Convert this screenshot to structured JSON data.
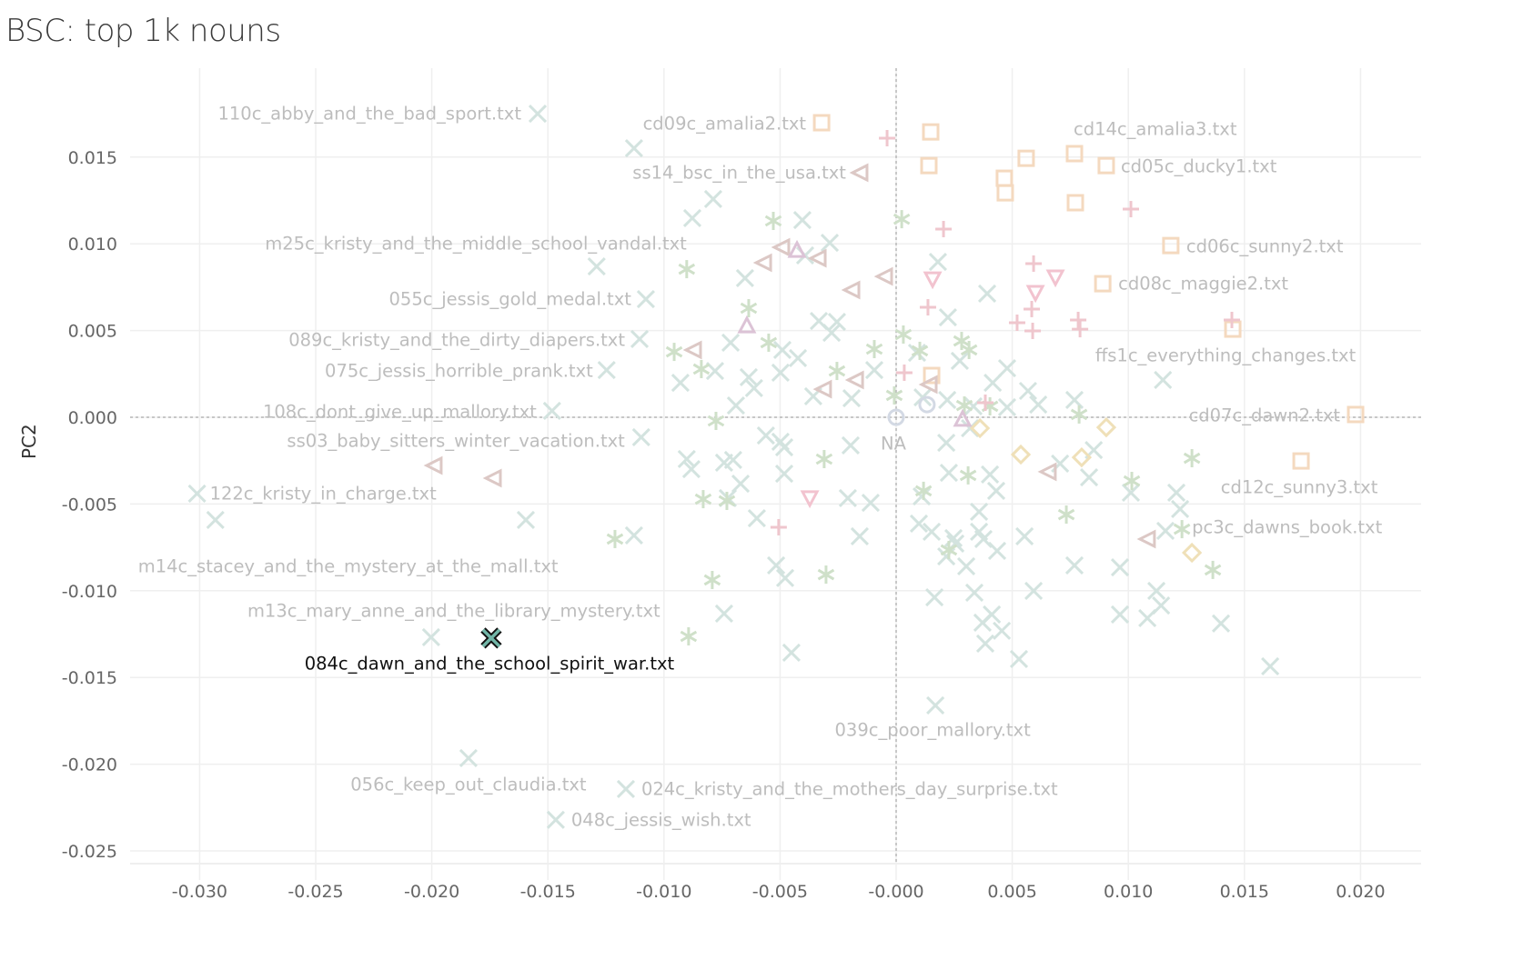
{
  "chart_data": {
    "type": "scatter",
    "title": "BSC: top 1k nouns",
    "xlabel": "",
    "ylabel": "PC2",
    "xlim": [
      -0.033,
      0.0225
    ],
    "ylim": [
      -0.0255,
      0.0195
    ],
    "x_ticks": [
      "-0.030",
      "-0.025",
      "-0.020",
      "-0.015",
      "-0.010",
      "-0.005",
      "-0.000",
      "0.005",
      "0.010",
      "0.015",
      "0.020"
    ],
    "x_tick_values": [
      -0.03,
      -0.025,
      -0.02,
      -0.015,
      -0.01,
      -0.005,
      0,
      0.005,
      0.01,
      0.015,
      0.02
    ],
    "y_ticks": [
      "0.015",
      "0.010",
      "0.005",
      "0.000",
      "-0.005",
      "-0.010",
      "-0.015",
      "-0.020",
      "-0.025"
    ],
    "y_tick_values": [
      0.015,
      0.01,
      0.005,
      0,
      -0.005,
      -0.01,
      -0.015,
      -0.02,
      -0.025
    ],
    "grid": true,
    "zero_lines": true,
    "legend": "none",
    "series": [
      {
        "shape": "x",
        "color": "#d3e3df",
        "points": [
          [
            -0.01129,
            0.01551
          ],
          [
            -0.00788,
            0.01258
          ],
          [
            -0.00878,
            0.01148
          ],
          [
            -0.00404,
            0.01137
          ],
          [
            -0.00286,
            0.01006
          ],
          [
            -0.00392,
            0.00933
          ],
          [
            -0.00651,
            0.00802
          ],
          [
            0.0018,
            0.00896
          ],
          [
            0.00392,
            0.00713
          ],
          [
            0.00223,
            0.00576
          ],
          [
            -0.00333,
            0.00555
          ],
          [
            -0.00255,
            0.0055
          ],
          [
            -0.00278,
            0.00487
          ],
          [
            -0.00713,
            0.0043
          ],
          [
            -0.0049,
            0.00388
          ],
          [
            -0.00423,
            0.00341
          ],
          [
            -0.00635,
            0.00231
          ],
          [
            -0.0078,
            0.00267
          ],
          [
            -0.00929,
            0.00199
          ],
          [
            -0.00612,
            0.00168
          ],
          [
            -0.00498,
            0.00257
          ],
          [
            -0.00357,
            0.00121
          ],
          [
            -0.00192,
            0.0011
          ],
          [
            -0.00094,
            0.00272
          ],
          [
            0.0009,
            0.00372
          ],
          [
            0.00274,
            0.00325
          ],
          [
            0.00416,
            0.00199
          ],
          [
            0.00478,
            0.00283
          ],
          [
            0.0022,
            0.001
          ],
          [
            0.00333,
            0.00063
          ],
          [
            0.00478,
            0.00058
          ],
          [
            0.00612,
            0.00073
          ],
          [
            0.00768,
            0.001
          ],
          [
            0.01149,
            0.00215
          ],
          [
            -0.0069,
            0.00068
          ],
          [
            0.00114,
            0.00115
          ],
          [
            -0.00561,
            -0.00105
          ],
          [
            -0.00498,
            -0.00141
          ],
          [
            -0.00482,
            -0.00173
          ],
          [
            -0.00196,
            -0.00162
          ],
          [
            -0.00482,
            -0.00325
          ],
          [
            -0.00902,
            -0.00241
          ],
          [
            -0.00882,
            -0.00299
          ],
          [
            -0.00741,
            -0.00262
          ],
          [
            -0.00702,
            -0.00246
          ],
          [
            -0.0067,
            -0.00383
          ],
          [
            -0.00725,
            -0.00466
          ],
          [
            -0.006,
            -0.00582
          ],
          [
            -0.01129,
            -0.00681
          ],
          [
            -0.01595,
            -0.00592
          ],
          [
            -0.00517,
            -0.00854
          ],
          [
            -0.00478,
            -0.00927
          ],
          [
            -0.00208,
            -0.00466
          ],
          [
            -0.0011,
            -0.00493
          ],
          [
            -0.00157,
            -0.00686
          ],
          [
            0.0011,
            -0.00456
          ],
          [
            0.00098,
            -0.00613
          ],
          [
            0.00153,
            -0.0066
          ],
          [
            0.00227,
            -0.0032
          ],
          [
            0.00318,
            -0.00063
          ],
          [
            0.00216,
            -0.00147
          ],
          [
            0.00247,
            -0.00697
          ],
          [
            0.00216,
            -0.00802
          ],
          [
            0.00302,
            -0.00859
          ],
          [
            0.00255,
            -0.00728
          ],
          [
            0.00404,
            -0.0033
          ],
          [
            0.00431,
            -0.00424
          ],
          [
            0.00357,
            -0.00545
          ],
          [
            0.00357,
            -0.0066
          ],
          [
            0.00376,
            -0.00702
          ],
          [
            0.00435,
            -0.0077
          ],
          [
            0.00553,
            -0.00686
          ],
          [
            0.00165,
            -0.01038
          ],
          [
            0.00337,
            -0.01011
          ],
          [
            0.00372,
            -0.01184
          ],
          [
            0.00412,
            -0.01137
          ],
          [
            0.00455,
            -0.01231
          ],
          [
            0.00384,
            -0.01305
          ],
          [
            0.00529,
            -0.01394
          ],
          [
            0.00592,
            -0.01001
          ],
          [
            0.00706,
            -0.00267
          ],
          [
            0.00831,
            -0.00346
          ],
          [
            0.00851,
            -0.00189
          ],
          [
            0.00768,
            -0.00854
          ],
          [
            0.00964,
            -0.00865
          ],
          [
            0.01011,
            -0.00435
          ],
          [
            0.00964,
            -0.01137
          ],
          [
            0.01082,
            -0.01158
          ],
          [
            0.01121,
            -0.01001
          ],
          [
            0.01141,
            -0.01085
          ],
          [
            0.01223,
            -0.00529
          ],
          [
            0.01207,
            -0.00435
          ],
          [
            0.0116,
            -0.00655
          ],
          [
            0.01399,
            -0.01189
          ],
          [
            0.01611,
            -0.01436
          ],
          [
            0.00568,
            0.00152
          ],
          [
            -0.00741,
            -0.01132
          ],
          [
            -0.00451,
            -0.01357
          ],
          [
            -0.02932,
            -0.00592
          ],
          [
            -0.02003,
            -0.01268
          ],
          [
            -0.01544,
            0.0175
          ],
          [
            -0.01078,
            0.00681
          ],
          [
            -0.01105,
            0.00451
          ],
          [
            -0.01247,
            0.00272
          ],
          [
            -0.01482,
            0.00037
          ],
          [
            -0.01098,
            -0.00115
          ],
          [
            -0.03011,
            -0.0044
          ],
          [
            -0.0129,
            0.0087
          ],
          [
            0.00169,
            -0.01661
          ],
          [
            -0.01842,
            -0.01965
          ],
          [
            -0.01164,
            -0.02143
          ],
          [
            -0.01466,
            -0.02321
          ]
        ]
      },
      {
        "shape": "asterisk",
        "color": "#cfe0c9",
        "points": [
          [
            -0.00529,
            0.01132
          ],
          [
            0.00024,
            0.01142
          ],
          [
            -0.00902,
            0.00854
          ],
          [
            -0.00635,
            0.00629
          ],
          [
            -0.00549,
            0.0043
          ],
          [
            0.00031,
            0.00477
          ],
          [
            -0.00094,
            0.00393
          ],
          [
            0.00102,
            0.00383
          ],
          [
            0.00282,
            0.0044
          ],
          [
            0.00314,
            0.00388
          ],
          [
            -0.00956,
            0.00377
          ],
          [
            -0.00839,
            0.00278
          ],
          [
            -0.00255,
            0.00267
          ],
          [
            -8e-05,
            0.00126
          ],
          [
            0.00294,
            0.00068
          ],
          [
            0.00788,
            0.00016
          ],
          [
            -0.00776,
            -0.00021
          ],
          [
            -0.0031,
            -0.00241
          ],
          [
            0.01274,
            -0.00236
          ],
          [
            0.01015,
            -0.00367
          ],
          [
            0.0031,
            -0.00335
          ],
          [
            0.00118,
            -0.00424
          ],
          [
            -0.00831,
            -0.00472
          ],
          [
            -0.00729,
            -0.00482
          ],
          [
            0.00733,
            -0.00561
          ],
          [
            -0.01211,
            -0.00702
          ],
          [
            0.00227,
            -0.00765
          ],
          [
            0.01231,
            -0.00645
          ],
          [
            0.01364,
            -0.0088
          ],
          [
            -0.00792,
            -0.00938
          ],
          [
            -0.00302,
            -0.00907
          ],
          [
            -0.00894,
            -0.01263
          ],
          [
            0.00404,
            0.00063
          ]
        ]
      },
      {
        "shape": "square",
        "color": "#f4d9bf",
        "points": [
          [
            -0.00321,
            0.01698
          ],
          [
            0.00149,
            0.01645
          ],
          [
            0.00141,
            0.01451
          ],
          [
            0.0056,
            0.01493
          ],
          [
            0.00466,
            0.01378
          ],
          [
            0.0047,
            0.01294
          ],
          [
            0.00768,
            0.0152
          ],
          [
            0.00905,
            0.01451
          ],
          [
            0.00772,
            0.01237
          ],
          [
            0.01183,
            0.0099
          ],
          [
            0.0089,
            0.0077
          ],
          [
            0.0145,
            0.00508
          ],
          [
            0.00153,
            0.00241
          ],
          [
            0.01979,
            0.00016
          ],
          [
            0.01744,
            -0.00252
          ]
        ]
      },
      {
        "shape": "plus",
        "color": "#efc6cd",
        "points": [
          [
            -0.00039,
            0.01609
          ],
          [
            0.00204,
            0.01085
          ],
          [
            0.01011,
            0.012
          ],
          [
            0.00592,
            0.00886
          ],
          [
            0.00137,
            0.00634
          ],
          [
            0.00584,
            0.00624
          ],
          [
            0.00521,
            0.00545
          ],
          [
            0.00588,
            0.00498
          ],
          [
            0.00784,
            0.00561
          ],
          [
            0.00792,
            0.00508
          ],
          [
            0.01446,
            0.00561
          ],
          [
            0.00035,
            0.00257
          ],
          [
            0.00384,
            0.00084
          ],
          [
            -0.00506,
            -0.00634
          ]
        ]
      },
      {
        "shape": "triangle-left",
        "color": "#dcc8c5",
        "points": [
          [
            -0.00153,
            0.0141
          ],
          [
            -0.0049,
            0.0098
          ],
          [
            -0.00568,
            0.00891
          ],
          [
            -0.00333,
            0.00917
          ],
          [
            -0.00188,
            0.00734
          ],
          [
            -0.00047,
            0.00812
          ],
          [
            -0.0087,
            0.00388
          ],
          [
            -0.0031,
            0.00162
          ],
          [
            -0.00172,
            0.00215
          ],
          [
            0.00145,
            0.00189
          ],
          [
            -0.01987,
            -0.00278
          ],
          [
            -0.01732,
            -0.00351
          ],
          [
            0.00658,
            -0.00314
          ],
          [
            0.01085,
            -0.00702
          ]
        ]
      },
      {
        "shape": "diamond",
        "color": "#efe0b8",
        "points": [
          [
            0.00361,
            -0.00063
          ],
          [
            0.00905,
            -0.00058
          ],
          [
            0.00537,
            -0.00215
          ],
          [
            0.00799,
            -0.00231
          ],
          [
            0.01274,
            -0.00781
          ]
        ]
      },
      {
        "shape": "triangle-down",
        "color": "#f2c3cf",
        "points": [
          [
            0.00157,
            0.00796
          ],
          [
            0.006,
            0.00718
          ],
          [
            0.00686,
            0.00807
          ],
          [
            -0.00372,
            -0.00466
          ]
        ]
      },
      {
        "shape": "triangle-up",
        "color": "#dcc3d6",
        "points": [
          [
            -0.00643,
            0.00529
          ],
          [
            -0.00427,
            0.00964
          ],
          [
            0.00286,
            -0.0001
          ]
        ]
      },
      {
        "shape": "circle",
        "color": "#d3d9e4",
        "points": [
          [
            0,
            0
          ],
          [
            0.00133,
            0.00073
          ]
        ]
      }
    ],
    "labels": [
      {
        "text": "110c_abby_and_the_bad_sport.txt",
        "x": -0.01544,
        "y": 0.0175
      },
      {
        "text": "cd09c_amalia2.txt",
        "x": -0.00321,
        "y": 0.01698
      },
      {
        "text": "cd14c_amalia3.txt",
        "x": 0.00768,
        "y": 0.0152
      },
      {
        "text": "ss14_bsc_in_the_usa.txt",
        "x": -0.00153,
        "y": 0.0141
      },
      {
        "text": "cd05c_ducky1.txt",
        "x": 0.00905,
        "y": 0.01451
      },
      {
        "text": "m25c_kristy_and_the_middle_school_vandal.txt",
        "x": -0.0129,
        "y": 0.0087
      },
      {
        "text": "cd06c_sunny2.txt",
        "x": 0.01183,
        "y": 0.0099
      },
      {
        "text": "055c_jessis_gold_medal.txt",
        "x": -0.01078,
        "y": 0.00681
      },
      {
        "text": "cd08c_maggie2.txt",
        "x": 0.0089,
        "y": 0.0077
      },
      {
        "text": "089c_kristy_and_the_dirty_diapers.txt",
        "x": -0.01105,
        "y": 0.00451
      },
      {
        "text": "075c_jessis_horrible_prank.txt",
        "x": -0.01247,
        "y": 0.00272
      },
      {
        "text": "ffs1c_everything_changes.txt",
        "x": 0.0145,
        "y": 0.00508
      },
      {
        "text": "108c_dont_give_up_mallory.txt",
        "x": -0.01482,
        "y": 0.00037
      },
      {
        "text": "cd07c_dawn2.txt",
        "x": 0.01979,
        "y": 0.00016
      },
      {
        "text": "ss03_baby_sitters_winter_vacation.txt",
        "x": -0.01098,
        "y": -0.00115
      },
      {
        "text": "NA",
        "x": 0,
        "y": 0
      },
      {
        "text": "cd12c_sunny3.txt",
        "x": 0.01744,
        "y": -0.00252
      },
      {
        "text": "122c_kristy_in_charge.txt",
        "x": -0.03011,
        "y": -0.0044
      },
      {
        "text": "pc3c_dawns_book.txt",
        "x": 0.01231,
        "y": -0.00645
      },
      {
        "text": "m14c_stacey_and_the_mystery_at_the_mall.txt",
        "x": -0.02932,
        "y": -0.00592
      },
      {
        "text": "m13c_mary_anne_and_the_library_mystery.txt",
        "x": -0.02003,
        "y": -0.01268
      },
      {
        "text": "084c_dawn_and_the_school_spirit_war.txt",
        "x": -0.01744,
        "y": -0.01273
      },
      {
        "text": "039c_poor_mallory.txt",
        "x": 0.00169,
        "y": -0.01661
      },
      {
        "text": "056c_keep_out_claudia.txt",
        "x": -0.01842,
        "y": -0.01965
      },
      {
        "text": "024c_kristy_and_the_mothers_day_surprise.txt",
        "x": -0.01164,
        "y": -0.02143
      },
      {
        "text": "048c_jessis_wish.txt",
        "x": -0.01466,
        "y": -0.02321
      }
    ],
    "highlighted": {
      "text": "084c_dawn_and_the_school_spirit_war.txt",
      "x": -0.01744,
      "y": -0.01273,
      "shape": "x",
      "fill": "#72b6a8",
      "outline": "#111111"
    }
  }
}
